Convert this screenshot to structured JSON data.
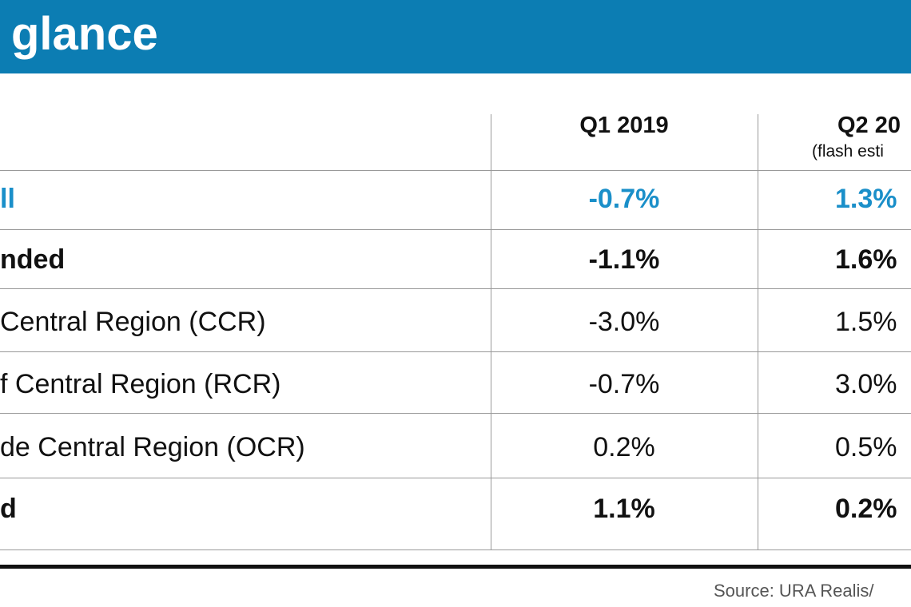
{
  "header": {
    "title": "glance"
  },
  "table": {
    "columns": [
      "Q1 2019",
      "Q2 20"
    ],
    "column_note": "(flash esti",
    "rows": [
      [
        "ll",
        "-0.7%",
        "1.3%"
      ],
      [
        "nded",
        "-1.1%",
        "1.6%"
      ],
      [
        "Central Region (CCR)",
        "-3.0%",
        "1.5%"
      ],
      [
        "f Central Region (RCR)",
        "-0.7%",
        "3.0%"
      ],
      [
        "de Central Region (OCR)",
        "0.2%",
        "0.5%"
      ],
      [
        "d",
        "1.1%",
        "0.2%"
      ]
    ]
  },
  "footer": {
    "source": "Source: URA Realis/"
  }
}
